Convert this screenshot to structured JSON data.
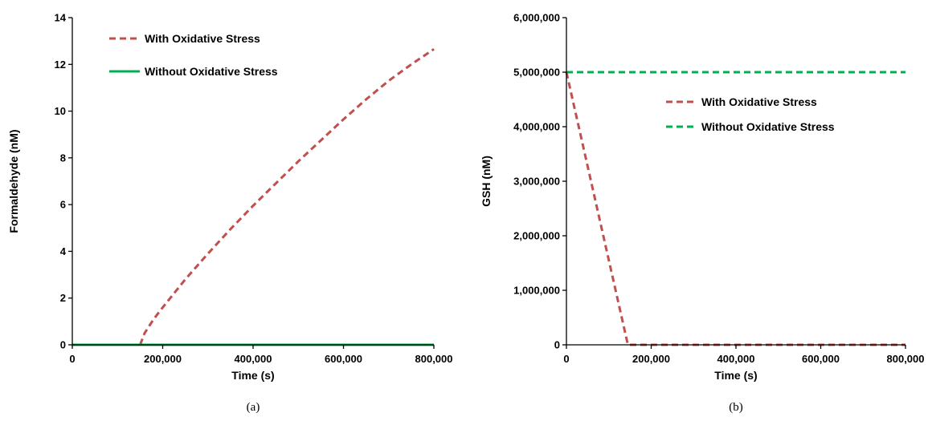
{
  "chart_data": [
    {
      "type": "line",
      "caption": "(a)",
      "xlabel": "Time (s)",
      "ylabel": "Formaldehyde (nM)",
      "xlim": [
        0,
        800000
      ],
      "ylim": [
        0,
        14
      ],
      "xticks": [
        0,
        200000,
        400000,
        600000,
        800000
      ],
      "xtick_labels": [
        "0",
        "200,000",
        "400,000",
        "600,000",
        "800,000"
      ],
      "yticks": [
        0,
        2,
        4,
        6,
        8,
        10,
        12,
        14
      ],
      "ytick_labels": [
        "0",
        "2",
        "4",
        "6",
        "8",
        "10",
        "12",
        "14"
      ],
      "grid": false,
      "legend_position": "top-left",
      "series": [
        {
          "name": "With Oxidative Stress",
          "color": "#C0504D",
          "style": "dashed",
          "x": [
            150000,
            160000,
            180000,
            200000,
            250000,
            300000,
            350000,
            400000,
            450000,
            500000,
            550000,
            600000,
            650000,
            700000,
            750000,
            800000
          ],
          "y": [
            0,
            0.5,
            1.1,
            1.6,
            2.8,
            3.9,
            4.95,
            5.95,
            6.9,
            7.85,
            8.75,
            9.65,
            10.5,
            11.3,
            12.0,
            12.65
          ]
        },
        {
          "name": "Without Oxidative Stress",
          "color": "#00B050",
          "style": "solid",
          "x": [
            0,
            800000
          ],
          "y": [
            0,
            0
          ]
        }
      ]
    },
    {
      "type": "line",
      "caption": "(b)",
      "xlabel": "Time (s)",
      "ylabel": "GSH (nM)",
      "xlim": [
        0,
        800000
      ],
      "ylim": [
        0,
        6000000
      ],
      "xticks": [
        0,
        200000,
        400000,
        600000,
        800000
      ],
      "xtick_labels": [
        "0",
        "200,000",
        "400,000",
        "600,000",
        "800,000"
      ],
      "yticks": [
        0,
        1000000,
        2000000,
        3000000,
        4000000,
        5000000,
        6000000
      ],
      "ytick_labels": [
        "0",
        "1,000,000",
        "2,000,000",
        "3,000,000",
        "4,000,000",
        "5,000,000",
        "6,000,000"
      ],
      "grid": false,
      "legend_position": "center-right",
      "series": [
        {
          "name": "With Oxidative Stress",
          "color": "#C0504D",
          "style": "dashed",
          "x": [
            0,
            145000,
            800000
          ],
          "y": [
            5000000,
            0,
            0
          ]
        },
        {
          "name": "Without Oxidative Stress",
          "color": "#00B050",
          "style": "dashed",
          "x": [
            0,
            800000
          ],
          "y": [
            5000000,
            5000000
          ]
        }
      ]
    }
  ]
}
